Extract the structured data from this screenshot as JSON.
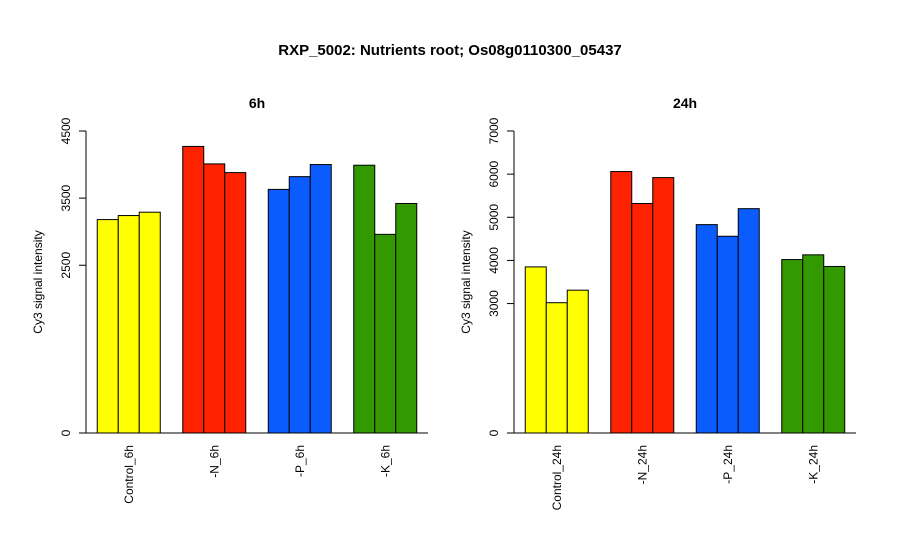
{
  "title": "RXP_5002: Nutrients root; Os08g0110300_05437",
  "chart_data": [
    {
      "type": "bar",
      "title": "6h",
      "ylabel": "Cy3 signal intensity",
      "ylim": [
        0,
        4500
      ],
      "yticks": [
        0,
        2500,
        3500,
        4500
      ],
      "groups": [
        {
          "label": "Control_6h",
          "color": "#ffff00",
          "values": [
            3180,
            3240,
            3290
          ]
        },
        {
          "label": "-N_6h",
          "color": "#ff2200",
          "values": [
            4270,
            4010,
            3880
          ]
        },
        {
          "label": "-P_6h",
          "color": "#0a5cff",
          "values": [
            3630,
            3820,
            4000
          ]
        },
        {
          "label": "-K_6h",
          "color": "#339900",
          "values": [
            3990,
            2960,
            3420
          ]
        }
      ]
    },
    {
      "type": "bar",
      "title": "24h",
      "ylabel": "Cy3 signal intensity",
      "ylim": [
        0,
        7000
      ],
      "yticks": [
        0,
        3000,
        4000,
        5000,
        6000,
        7000
      ],
      "groups": [
        {
          "label": "Control_24h",
          "color": "#ffff00",
          "values": [
            3850,
            3020,
            3310
          ]
        },
        {
          "label": "-N_24h",
          "color": "#ff2200",
          "values": [
            6060,
            5320,
            5920
          ]
        },
        {
          "label": "-P_24h",
          "color": "#0a5cff",
          "values": [
            4830,
            4560,
            5200
          ]
        },
        {
          "label": "-K_24h",
          "color": "#339900",
          "values": [
            4020,
            4130,
            3860
          ]
        }
      ]
    }
  ]
}
